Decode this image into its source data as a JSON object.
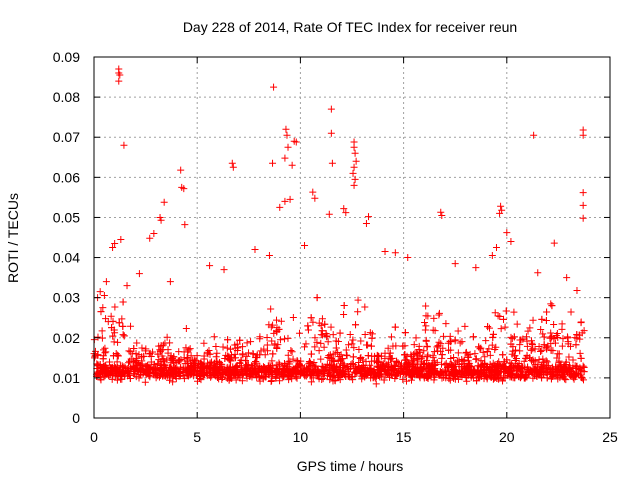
{
  "chart_data": {
    "type": "scatter",
    "title": "Day 228 of 2014, Rate Of TEC Index for receiver reun",
    "xlabel": "GPS time / hours",
    "ylabel": "ROTI / TECUs",
    "xlim": [
      0,
      25
    ],
    "ylim": [
      0,
      0.09
    ],
    "xticks": [
      0,
      5,
      10,
      15,
      20,
      25
    ],
    "yticks": [
      0,
      0.01,
      0.02,
      0.03,
      0.04,
      0.05,
      0.06,
      0.07,
      0.08,
      0.09
    ],
    "xtick_labels": [
      "0",
      "5",
      "10",
      "15",
      "20",
      "25"
    ],
    "ytick_labels": [
      "0",
      "0.01",
      "0.02",
      "0.03",
      "0.04",
      "0.05",
      "0.06",
      "0.07",
      "0.08",
      "0.09"
    ],
    "grid": true,
    "marker": "+",
    "series_color": "#ff0000",
    "series": [
      {
        "name": "ROTI",
        "points": [
          [
            1.2,
            0.087
          ],
          [
            1.2,
            0.086
          ],
          [
            1.25,
            0.0855
          ],
          [
            1.2,
            0.084
          ],
          [
            1.45,
            0.068
          ],
          [
            8.7,
            0.0825
          ],
          [
            11.5,
            0.077
          ],
          [
            11.5,
            0.071
          ],
          [
            11.55,
            0.0635
          ],
          [
            21.3,
            0.0705
          ],
          [
            23.7,
            0.0718
          ],
          [
            23.7,
            0.0705
          ],
          [
            23.7,
            0.0562
          ],
          [
            23.7,
            0.053
          ],
          [
            23.7,
            0.0498
          ],
          [
            9.3,
            0.072
          ],
          [
            9.35,
            0.0705
          ],
          [
            9.4,
            0.0675
          ],
          [
            9.25,
            0.0648
          ],
          [
            9.7,
            0.069
          ],
          [
            9.8,
            0.0688
          ],
          [
            9.6,
            0.063
          ],
          [
            8.65,
            0.0635
          ],
          [
            6.7,
            0.0635
          ],
          [
            6.75,
            0.0625
          ],
          [
            12.6,
            0.0688
          ],
          [
            12.6,
            0.0675
          ],
          [
            12.65,
            0.066
          ],
          [
            12.7,
            0.064
          ],
          [
            12.6,
            0.0625
          ],
          [
            12.55,
            0.061
          ],
          [
            12.65,
            0.0595
          ],
          [
            12.6,
            0.058
          ],
          [
            4.2,
            0.0618
          ],
          [
            4.25,
            0.0575
          ],
          [
            4.35,
            0.0572
          ],
          [
            3.4,
            0.0538
          ],
          [
            3.2,
            0.05
          ],
          [
            3.25,
            0.0493
          ],
          [
            10.6,
            0.0563
          ],
          [
            10.7,
            0.0548
          ],
          [
            9.5,
            0.0545
          ],
          [
            9.25,
            0.054
          ],
          [
            9.0,
            0.0525
          ],
          [
            16.8,
            0.0513
          ],
          [
            16.85,
            0.0505
          ],
          [
            19.7,
            0.0528
          ],
          [
            19.75,
            0.0518
          ],
          [
            19.65,
            0.051
          ],
          [
            12.1,
            0.0522
          ],
          [
            12.2,
            0.0512
          ],
          [
            13.3,
            0.0502
          ],
          [
            13.2,
            0.0485
          ],
          [
            11.4,
            0.0508
          ],
          [
            4.4,
            0.0482
          ],
          [
            2.7,
            0.0448
          ],
          [
            2.9,
            0.046
          ],
          [
            1.3,
            0.0445
          ],
          [
            1.0,
            0.0435
          ],
          [
            0.9,
            0.0425
          ],
          [
            20.0,
            0.0462
          ],
          [
            20.2,
            0.044
          ],
          [
            22.3,
            0.0436
          ],
          [
            19.5,
            0.0425
          ],
          [
            19.3,
            0.0405
          ],
          [
            14.1,
            0.0415
          ],
          [
            14.6,
            0.0412
          ],
          [
            15.2,
            0.04
          ],
          [
            7.8,
            0.042
          ],
          [
            8.5,
            0.0405
          ],
          [
            10.2,
            0.043
          ],
          [
            17.5,
            0.0385
          ],
          [
            18.5,
            0.0375
          ],
          [
            5.6,
            0.038
          ],
          [
            6.3,
            0.037
          ],
          [
            2.2,
            0.036
          ],
          [
            3.7,
            0.034
          ],
          [
            21.5,
            0.0362
          ],
          [
            22.9,
            0.035
          ],
          [
            23.4,
            0.0318
          ],
          [
            0.3,
            0.0315
          ],
          [
            0.6,
            0.034
          ],
          [
            1.6,
            0.033
          ]
        ]
      }
    ]
  }
}
